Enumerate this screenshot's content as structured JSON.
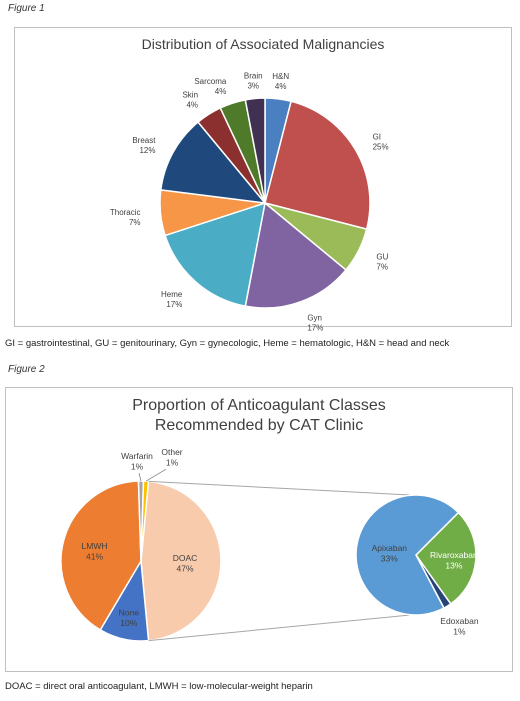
{
  "figure1": {
    "label": "Figure 1",
    "caption": "GI = gastrointestinal, GU = genitourinary, Gyn = gynecologic, Heme = hematologic, H&N = head and neck"
  },
  "figure2": {
    "label": "Figure 2",
    "caption": "DOAC = direct oral anticoagulant, LMWH = low-molecular-weight heparin"
  },
  "chart_data": [
    {
      "type": "pie",
      "title": "Distribution of Associated Malignancies",
      "slices": [
        {
          "label": "H&N",
          "pct_label": "4%",
          "value": 4,
          "color": "#4a7fc1"
        },
        {
          "label": "GI",
          "pct_label": "25%",
          "value": 25,
          "color": "#c0504d"
        },
        {
          "label": "GU",
          "pct_label": "7%",
          "value": 7,
          "color": "#9bbb59"
        },
        {
          "label": "Gyn",
          "pct_label": "17%",
          "value": 17,
          "color": "#8064a2"
        },
        {
          "label": "Heme",
          "pct_label": "17%",
          "value": 17,
          "color": "#4bacc6"
        },
        {
          "label": "Thoracic",
          "pct_label": "7%",
          "value": 7,
          "color": "#f79646"
        },
        {
          "label": "Breast",
          "pct_label": "12%",
          "value": 12,
          "color": "#1f497d"
        },
        {
          "label": "Skin",
          "pct_label": "4%",
          "value": 4,
          "color": "#8b2f2f"
        },
        {
          "label": "Sarcoma",
          "pct_label": "4%",
          "value": 4,
          "color": "#4f7a2a"
        },
        {
          "label": "Brain",
          "pct_label": "3%",
          "value": 3,
          "color": "#403152"
        }
      ]
    },
    {
      "type": "pie",
      "title": "Proportion of Anticoagulant Classes Recommended by CAT Clinic",
      "slices": [
        {
          "label": "DOAC",
          "pct_label": "47%",
          "value": 47,
          "color": "#f8cbad"
        },
        {
          "label": "None",
          "pct_label": "10%",
          "value": 10,
          "color": "#4472c4"
        },
        {
          "label": "LMWH",
          "pct_label": "41%",
          "value": 41,
          "color": "#ed7d31"
        },
        {
          "label": "Warfarin",
          "pct_label": "1%",
          "value": 1,
          "color": "#a5a5a5"
        },
        {
          "label": "Other",
          "pct_label": "1%",
          "value": 1,
          "color": "#ffc000"
        }
      ],
      "breakdown_of": "DOAC",
      "sub_slices": [
        {
          "label": "Rivaroxaban",
          "pct_label": "13%",
          "value": 13,
          "color": "#70ad47"
        },
        {
          "label": "Edoxaban",
          "pct_label": "1%",
          "value": 1,
          "color": "#264478"
        },
        {
          "label": "Apixaban",
          "pct_label": "33%",
          "value": 33,
          "color": "#5b9bd5"
        }
      ]
    }
  ]
}
